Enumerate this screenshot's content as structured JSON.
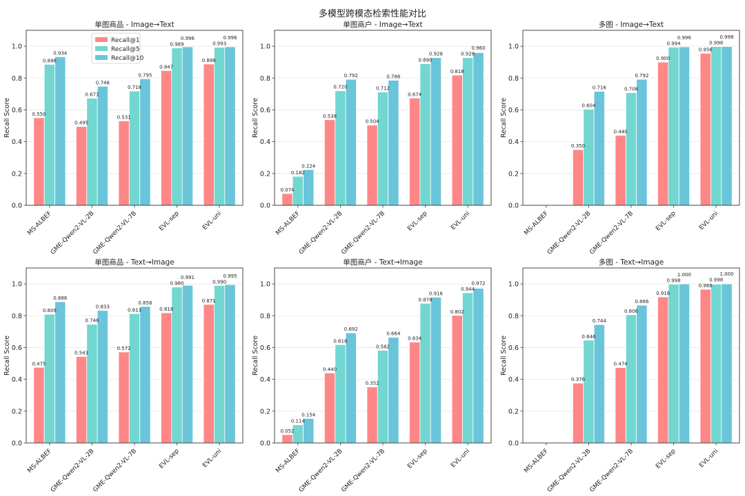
{
  "title": "多模型跨模态检索性能对比",
  "colors": {
    "Recall@1": "#ff8787",
    "Recall@5": "#72d7d0",
    "Recall@10": "#6ac5da"
  },
  "chart_data": [
    {
      "type": "bar",
      "title": "单图商品 - Image→Text",
      "ylabel": "Recall Score",
      "ylim": [
        0,
        1.1
      ],
      "yticks": [
        "0.0",
        "0.2",
        "0.4",
        "0.6",
        "0.8",
        "1.0"
      ],
      "grid": true,
      "legend": "top-left",
      "categories": [
        "MS-ALBEF",
        "GME-Qwen2-VL-2B",
        "GME-Qwen2-VL-7B",
        "EVL-sep",
        "EVL-uni"
      ],
      "series": [
        {
          "name": "Recall@1",
          "values": [
            0.55,
            0.495,
            0.531,
            0.847,
            0.888
          ]
        },
        {
          "name": "Recall@5",
          "values": [
            0.886,
            0.673,
            0.718,
            0.989,
            0.993
          ]
        },
        {
          "name": "Recall@10",
          "values": [
            0.934,
            0.748,
            0.795,
            0.996,
            0.996
          ]
        }
      ]
    },
    {
      "type": "bar",
      "title": "单图商户 - Image→Text",
      "ylabel": "Recall Score",
      "ylim": [
        0,
        1.1
      ],
      "yticks": [
        "0.0",
        "0.2",
        "0.4",
        "0.6",
        "0.8",
        "1.0"
      ],
      "grid": true,
      "categories": [
        "MS-ALBEF",
        "GME-Qwen2-VL-2B",
        "GME-Qwen2-VL-7B",
        "EVL-sep",
        "EVL-uni"
      ],
      "series": [
        {
          "name": "Recall@1",
          "values": [
            0.074,
            0.538,
            0.504,
            0.674,
            0.818
          ]
        },
        {
          "name": "Recall@5",
          "values": [
            0.182,
            0.72,
            0.712,
            0.89,
            0.928
          ]
        },
        {
          "name": "Recall@10",
          "values": [
            0.224,
            0.792,
            0.786,
            0.928,
            0.96
          ]
        }
      ]
    },
    {
      "type": "bar",
      "title": "多图 - Image→Text",
      "ylabel": "Recall Score",
      "ylim": [
        0,
        1.1
      ],
      "yticks": [
        "0.0",
        "0.2",
        "0.4",
        "0.6",
        "0.8",
        "1.0"
      ],
      "grid": true,
      "categories": [
        "MS-ALBEF",
        "GME-Qwen2-VL-2B",
        "GME-Qwen2-VL-7B",
        "EVL-sep",
        "EVL-uni"
      ],
      "series": [
        {
          "name": "Recall@1",
          "values": [
            null,
            0.35,
            0.44,
            0.9,
            0.956
          ]
        },
        {
          "name": "Recall@5",
          "values": [
            null,
            0.604,
            0.708,
            0.994,
            0.998
          ]
        },
        {
          "name": "Recall@10",
          "values": [
            null,
            0.716,
            0.792,
            0.996,
            0.998
          ]
        }
      ]
    },
    {
      "type": "bar",
      "title": "单图商品 - Text→Image",
      "ylabel": "Recall Score",
      "ylim": [
        0,
        1.1
      ],
      "yticks": [
        "0.0",
        "0.2",
        "0.4",
        "0.6",
        "0.8",
        "1.0"
      ],
      "grid": true,
      "categories": [
        "MS-ALBEF",
        "GME-Qwen2-VL-2B",
        "GME-Qwen2-VL-7B",
        "EVL-sep",
        "EVL-uni"
      ],
      "series": [
        {
          "name": "Recall@1",
          "values": [
            0.475,
            0.543,
            0.572,
            0.818,
            0.871
          ]
        },
        {
          "name": "Recall@5",
          "values": [
            0.809,
            0.746,
            0.813,
            0.98,
            0.99
          ]
        },
        {
          "name": "Recall@10",
          "values": [
            0.888,
            0.833,
            0.858,
            0.991,
            0.995
          ]
        }
      ]
    },
    {
      "type": "bar",
      "title": "单图商户 - Text→Image",
      "ylabel": "Recall Score",
      "ylim": [
        0,
        1.1
      ],
      "yticks": [
        "0.0",
        "0.2",
        "0.4",
        "0.6",
        "0.8",
        "1.0"
      ],
      "grid": true,
      "categories": [
        "MS-ALBEF",
        "GME-Qwen2-VL-2B",
        "GME-Qwen2-VL-7B",
        "EVL-sep",
        "EVL-uni"
      ],
      "series": [
        {
          "name": "Recall@1",
          "values": [
            0.052,
            0.44,
            0.352,
            0.634,
            0.802
          ]
        },
        {
          "name": "Recall@5",
          "values": [
            0.114,
            0.618,
            0.582,
            0.878,
            0.944
          ]
        },
        {
          "name": "Recall@10",
          "values": [
            0.154,
            0.692,
            0.664,
            0.916,
            0.972
          ]
        }
      ]
    },
    {
      "type": "bar",
      "title": "多图 - Text→Image",
      "ylabel": "Recall Score",
      "ylim": [
        0,
        1.1
      ],
      "yticks": [
        "0.0",
        "0.2",
        "0.4",
        "0.6",
        "0.8",
        "1.0"
      ],
      "grid": true,
      "categories": [
        "MS-ALBEF",
        "GME-Qwen2-VL-2B",
        "GME-Qwen2-VL-7B",
        "EVL-sep",
        "EVL-uni"
      ],
      "series": [
        {
          "name": "Recall@1",
          "values": [
            null,
            0.376,
            0.474,
            0.918,
            0.966
          ]
        },
        {
          "name": "Recall@5",
          "values": [
            null,
            0.646,
            0.806,
            0.998,
            0.998
          ]
        },
        {
          "name": "Recall@10",
          "values": [
            null,
            0.744,
            0.866,
            1.0,
            1.0
          ]
        }
      ]
    }
  ]
}
